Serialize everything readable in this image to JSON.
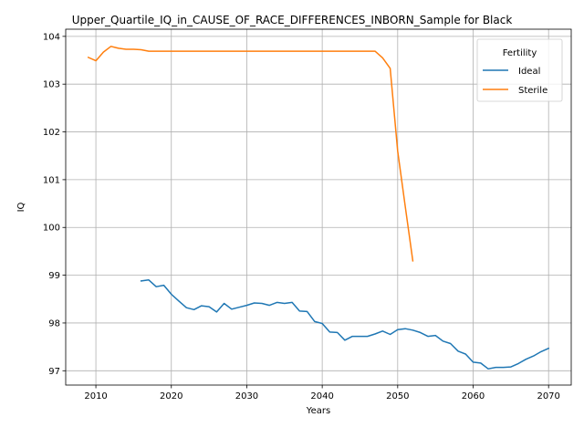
{
  "chart_data": {
    "type": "line",
    "title": "Upper_Quartile_IQ_in_CAUSE_OF_RACE_DIFFERENCES_INBORN_Sample for Black",
    "xlabel": "Years",
    "ylabel": "IQ",
    "xlim": [
      2006,
      2073
    ],
    "ylim": [
      96.7,
      104.15
    ],
    "xticks": [
      2010,
      2020,
      2030,
      2040,
      2050,
      2060,
      2070
    ],
    "yticks": [
      97,
      98,
      99,
      100,
      101,
      102,
      103,
      104
    ],
    "grid": true,
    "legend": {
      "title": "Fertility",
      "position": "top-right"
    },
    "series": [
      {
        "name": "Ideal",
        "color": "#1f77b4",
        "x": [
          2016,
          2017,
          2018,
          2019,
          2020,
          2021,
          2022,
          2023,
          2024,
          2025,
          2026,
          2027,
          2028,
          2029,
          2030,
          2031,
          2032,
          2033,
          2034,
          2035,
          2036,
          2037,
          2038,
          2039,
          2040,
          2041,
          2042,
          2043,
          2044,
          2045,
          2046,
          2047,
          2048,
          2049,
          2050,
          2051,
          2052,
          2053,
          2054,
          2055,
          2056,
          2057,
          2058,
          2059,
          2060,
          2061,
          2062,
          2063,
          2064,
          2065,
          2066,
          2067,
          2068,
          2069,
          2070
        ],
        "y": [
          98.88,
          98.9,
          98.76,
          98.79,
          98.6,
          98.46,
          98.32,
          98.28,
          98.36,
          98.34,
          98.23,
          98.41,
          98.29,
          98.33,
          98.37,
          98.42,
          98.41,
          98.37,
          98.43,
          98.41,
          98.43,
          98.25,
          98.24,
          98.03,
          97.99,
          97.81,
          97.8,
          97.64,
          97.72,
          97.72,
          97.72,
          97.77,
          97.83,
          97.76,
          97.86,
          97.88,
          97.85,
          97.8,
          97.72,
          97.74,
          97.62,
          97.57,
          97.41,
          97.35,
          97.18,
          97.16,
          97.04,
          97.07,
          97.07,
          97.08,
          97.15,
          97.24,
          97.31,
          97.4,
          97.47
        ]
      },
      {
        "name": "Sterile",
        "color": "#ff7f0e",
        "x": [
          2009,
          2010,
          2011,
          2012,
          2013,
          2014,
          2015,
          2016,
          2017,
          2018,
          2019,
          2020,
          2021,
          2022,
          2023,
          2024,
          2025,
          2026,
          2027,
          2028,
          2029,
          2030,
          2031,
          2032,
          2033,
          2034,
          2035,
          2036,
          2037,
          2038,
          2039,
          2040,
          2041,
          2042,
          2043,
          2044,
          2045,
          2046,
          2047,
          2048,
          2049,
          2050,
          2051,
          2052
        ],
        "y": [
          103.56,
          103.49,
          103.67,
          103.79,
          103.75,
          103.73,
          103.73,
          103.72,
          103.69,
          103.69,
          103.69,
          103.69,
          103.69,
          103.69,
          103.69,
          103.69,
          103.69,
          103.69,
          103.69,
          103.69,
          103.69,
          103.69,
          103.69,
          103.69,
          103.69,
          103.69,
          103.69,
          103.69,
          103.69,
          103.69,
          103.69,
          103.69,
          103.69,
          103.69,
          103.69,
          103.69,
          103.69,
          103.69,
          103.69,
          103.55,
          103.33,
          101.6,
          100.44,
          99.3
        ]
      }
    ]
  }
}
